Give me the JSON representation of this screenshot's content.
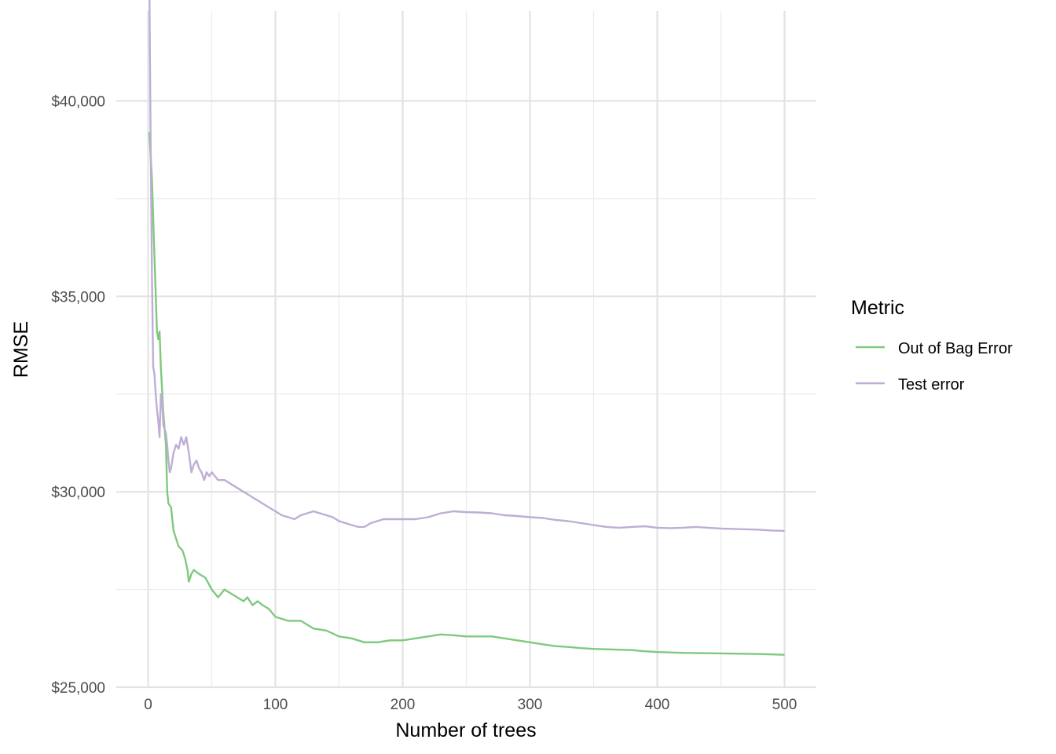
{
  "chart_data": {
    "type": "line",
    "xlabel": "Number of trees",
    "ylabel": "RMSE",
    "xlim": [
      -25,
      525
    ],
    "ylim": [
      25000,
      42300
    ],
    "x_ticks": [
      0,
      100,
      200,
      300,
      400,
      500
    ],
    "x_tick_labels": [
      "0",
      "100",
      "200",
      "300",
      "400",
      "500"
    ],
    "y_ticks": [
      25000,
      30000,
      35000,
      40000
    ],
    "y_tick_labels": [
      "$25,000",
      "$30,000",
      "$35,000",
      "$40,000"
    ],
    "grid": true,
    "legend": {
      "title": "Metric",
      "position": "right"
    },
    "series": [
      {
        "name": "Out of Bag Error",
        "color": "#7fc97f",
        "points": [
          [
            1,
            39200
          ],
          [
            3,
            38000
          ],
          [
            5,
            36000
          ],
          [
            7,
            34100
          ],
          [
            8,
            33900
          ],
          [
            9,
            34100
          ],
          [
            10,
            33200
          ],
          [
            12,
            32000
          ],
          [
            14,
            31200
          ],
          [
            15,
            30000
          ],
          [
            16,
            29700
          ],
          [
            18,
            29600
          ],
          [
            20,
            29000
          ],
          [
            22,
            28800
          ],
          [
            24,
            28600
          ],
          [
            27,
            28500
          ],
          [
            29,
            28300
          ],
          [
            31,
            28000
          ],
          [
            32,
            27700
          ],
          [
            34,
            27900
          ],
          [
            36,
            28000
          ],
          [
            40,
            27900
          ],
          [
            45,
            27800
          ],
          [
            50,
            27500
          ],
          [
            55,
            27300
          ],
          [
            60,
            27500
          ],
          [
            65,
            27400
          ],
          [
            70,
            27300
          ],
          [
            75,
            27200
          ],
          [
            78,
            27300
          ],
          [
            82,
            27100
          ],
          [
            86,
            27200
          ],
          [
            90,
            27100
          ],
          [
            95,
            27000
          ],
          [
            100,
            26800
          ],
          [
            110,
            26700
          ],
          [
            120,
            26700
          ],
          [
            125,
            26600
          ],
          [
            130,
            26500
          ],
          [
            140,
            26450
          ],
          [
            150,
            26300
          ],
          [
            160,
            26250
          ],
          [
            170,
            26150
          ],
          [
            180,
            26150
          ],
          [
            190,
            26200
          ],
          [
            200,
            26200
          ],
          [
            210,
            26250
          ],
          [
            220,
            26300
          ],
          [
            230,
            26350
          ],
          [
            240,
            26330
          ],
          [
            250,
            26300
          ],
          [
            260,
            26300
          ],
          [
            270,
            26300
          ],
          [
            280,
            26250
          ],
          [
            290,
            26200
          ],
          [
            300,
            26150
          ],
          [
            310,
            26100
          ],
          [
            320,
            26050
          ],
          [
            330,
            26030
          ],
          [
            340,
            26000
          ],
          [
            350,
            25980
          ],
          [
            360,
            25970
          ],
          [
            370,
            25960
          ],
          [
            380,
            25950
          ],
          [
            390,
            25920
          ],
          [
            400,
            25900
          ],
          [
            420,
            25880
          ],
          [
            440,
            25870
          ],
          [
            460,
            25860
          ],
          [
            480,
            25850
          ],
          [
            490,
            25840
          ],
          [
            500,
            25830
          ]
        ]
      },
      {
        "name": "Test error",
        "color": "#beaed4",
        "points": [
          [
            1,
            43000
          ],
          [
            2,
            39000
          ],
          [
            3,
            35500
          ],
          [
            4,
            33200
          ],
          [
            5,
            33000
          ],
          [
            6,
            32500
          ],
          [
            7,
            32100
          ],
          [
            8,
            31800
          ],
          [
            9,
            31400
          ],
          [
            10,
            32500
          ],
          [
            11,
            32300
          ],
          [
            12,
            31700
          ],
          [
            13,
            31600
          ],
          [
            14,
            31500
          ],
          [
            15,
            31200
          ],
          [
            16,
            30800
          ],
          [
            17,
            30500
          ],
          [
            18,
            30600
          ],
          [
            19,
            30800
          ],
          [
            20,
            31000
          ],
          [
            22,
            31200
          ],
          [
            24,
            31100
          ],
          [
            26,
            31400
          ],
          [
            28,
            31200
          ],
          [
            30,
            31400
          ],
          [
            32,
            31000
          ],
          [
            34,
            30500
          ],
          [
            36,
            30700
          ],
          [
            38,
            30800
          ],
          [
            40,
            30600
          ],
          [
            42,
            30500
          ],
          [
            44,
            30300
          ],
          [
            46,
            30500
          ],
          [
            48,
            30400
          ],
          [
            50,
            30500
          ],
          [
            55,
            30300
          ],
          [
            60,
            30300
          ],
          [
            65,
            30200
          ],
          [
            70,
            30100
          ],
          [
            75,
            30000
          ],
          [
            80,
            29900
          ],
          [
            85,
            29800
          ],
          [
            90,
            29700
          ],
          [
            95,
            29600
          ],
          [
            100,
            29500
          ],
          [
            105,
            29400
          ],
          [
            110,
            29350
          ],
          [
            115,
            29300
          ],
          [
            120,
            29400
          ],
          [
            125,
            29450
          ],
          [
            130,
            29500
          ],
          [
            135,
            29450
          ],
          [
            140,
            29400
          ],
          [
            145,
            29350
          ],
          [
            150,
            29250
          ],
          [
            155,
            29200
          ],
          [
            160,
            29150
          ],
          [
            165,
            29100
          ],
          [
            170,
            29100
          ],
          [
            175,
            29200
          ],
          [
            180,
            29250
          ],
          [
            185,
            29300
          ],
          [
            190,
            29300
          ],
          [
            200,
            29300
          ],
          [
            210,
            29300
          ],
          [
            220,
            29350
          ],
          [
            230,
            29450
          ],
          [
            240,
            29500
          ],
          [
            250,
            29480
          ],
          [
            260,
            29470
          ],
          [
            270,
            29450
          ],
          [
            280,
            29400
          ],
          [
            290,
            29380
          ],
          [
            300,
            29350
          ],
          [
            310,
            29330
          ],
          [
            320,
            29280
          ],
          [
            330,
            29250
          ],
          [
            340,
            29200
          ],
          [
            350,
            29150
          ],
          [
            360,
            29100
          ],
          [
            370,
            29080
          ],
          [
            380,
            29100
          ],
          [
            390,
            29120
          ],
          [
            400,
            29080
          ],
          [
            410,
            29070
          ],
          [
            420,
            29080
          ],
          [
            430,
            29100
          ],
          [
            440,
            29080
          ],
          [
            450,
            29060
          ],
          [
            460,
            29050
          ],
          [
            470,
            29040
          ],
          [
            480,
            29030
          ],
          [
            490,
            29010
          ],
          [
            500,
            29000
          ]
        ]
      }
    ]
  }
}
